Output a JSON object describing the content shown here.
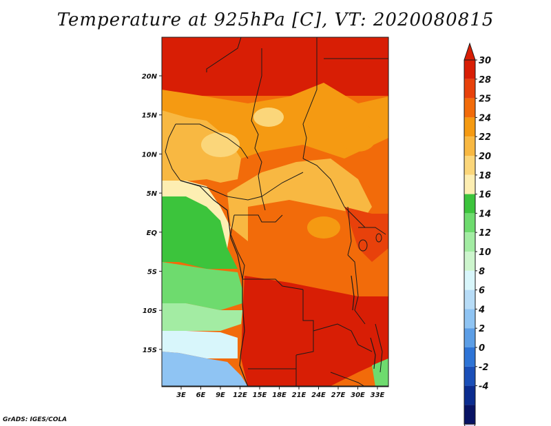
{
  "title": "Temperature at 925hPa [C], VT: 2020080815",
  "credit": "GrADS: IGES/COLA",
  "lat_labels": [
    "20N",
    "15N",
    "10N",
    "5N",
    "EQ",
    "5S",
    "10S",
    "15S"
  ],
  "lon_labels": [
    "3E",
    "6E",
    "9E",
    "12E",
    "15E",
    "18E",
    "21E",
    "24E",
    "27E",
    "30E",
    "33E"
  ],
  "colorbar": {
    "levels": [
      "30",
      "28",
      "25",
      "24",
      "22",
      "20",
      "18",
      "16",
      "14",
      "12",
      "10",
      "8",
      "6",
      "4",
      "2",
      "0",
      "-2",
      "-4"
    ],
    "colors": [
      "#d81e05",
      "#e8410b",
      "#f26b0a",
      "#f59a12",
      "#f8b842",
      "#fbd67a",
      "#fdeeb2",
      "#3cc43c",
      "#6edb6e",
      "#a3eca3",
      "#cdf5cd",
      "#d8f6fb",
      "#b7dcf7",
      "#8fc4f3",
      "#5c9ee6",
      "#2e74d6",
      "#1a4fb8",
      "#0b2c8f",
      "#081364"
    ],
    "top_arrow_color": "#d81e05",
    "bottom_arrow_color": "#dcd6f7"
  },
  "palette": {
    "very_hot": "#d81e05",
    "hot": "#e8410b",
    "warm": "#f26b0a",
    "orange": "#f59a12",
    "light_orange": "#f8b842",
    "pale": "#fbd67a",
    "cream": "#fdeeb2",
    "green_dark": "#3cc43c",
    "green": "#6edb6e",
    "green_light": "#a3eca3",
    "green_pale": "#cdf5cd",
    "cyan_pale": "#d8f6fb",
    "blue_light": "#b7dcf7",
    "blue": "#8fc4f3"
  }
}
